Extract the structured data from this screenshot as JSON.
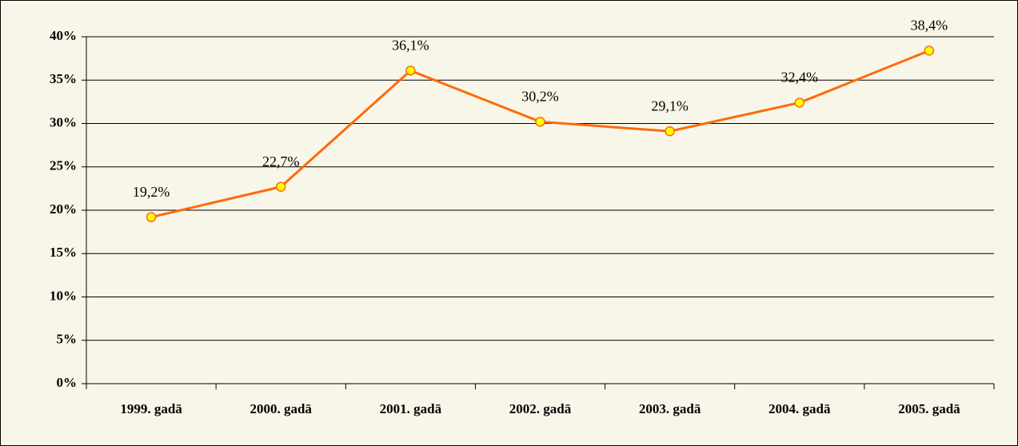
{
  "chart_data": {
    "type": "line",
    "categories": [
      "1999. gadā",
      "2000. gadā",
      "2001. gadā",
      "2002. gadā",
      "2003. gadā",
      "2004. gadā",
      "2005. gadā"
    ],
    "values": [
      19.2,
      22.7,
      36.1,
      30.2,
      29.1,
      32.4,
      38.4
    ],
    "value_labels": [
      "19,2%",
      "22,7%",
      "36,1%",
      "30,2%",
      "29,1%",
      "32,4%",
      "38,4%"
    ],
    "color": "#ff6a0a",
    "marker_color": "#ffff00",
    "ylim": [
      0,
      40
    ],
    "yticks": [
      {
        "value": 0,
        "label": "0%"
      },
      {
        "value": 5,
        "label": "5%"
      },
      {
        "value": 10,
        "label": "10%"
      },
      {
        "value": 15,
        "label": "15%"
      },
      {
        "value": 20,
        "label": "20%"
      },
      {
        "value": 25,
        "label": "25%"
      },
      {
        "value": 30,
        "label": "30%"
      },
      {
        "value": 35,
        "label": "35%"
      },
      {
        "value": 40,
        "label": "40%"
      }
    ],
    "grid": true
  }
}
